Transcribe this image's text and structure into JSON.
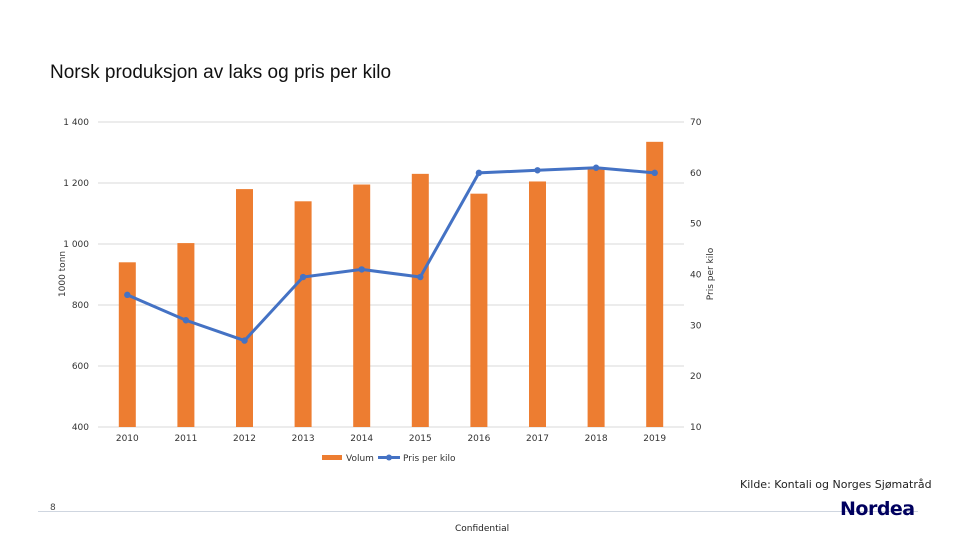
{
  "title": "Norsk produksjon av laks og pris per kilo",
  "chart_data": {
    "type": "bar+line",
    "categories": [
      "2010",
      "2011",
      "2012",
      "2013",
      "2014",
      "2015",
      "2016",
      "2017",
      "2018",
      "2019"
    ],
    "series": [
      {
        "name": "Volum",
        "type": "bar",
        "axis": "left",
        "color": "#ED7D31",
        "values": [
          940,
          1003,
          1180,
          1140,
          1195,
          1230,
          1165,
          1205,
          1250,
          1335
        ]
      },
      {
        "name": "Pris per kilo",
        "type": "line",
        "axis": "right",
        "color": "#4472C4",
        "values": [
          36,
          31,
          27,
          39.5,
          41,
          39.5,
          60,
          60.5,
          61,
          60
        ]
      }
    ],
    "ylabel_left": "1000 tonn",
    "ylabel_right": "Pris per kilo",
    "ylim_left": [
      400,
      1400
    ],
    "yticks_left": [
      "400",
      "600",
      "800",
      "1 000",
      "1 200",
      "1 400"
    ],
    "ylim_right": [
      10,
      70
    ],
    "yticks_right": [
      "10",
      "20",
      "30",
      "40",
      "50",
      "60",
      "70"
    ],
    "grid": true,
    "legend": "bottom"
  },
  "source": "Kilde: Kontali og Norges Sjømatråd",
  "page_number": "8",
  "footer": "Confidential",
  "logo": "Nordea"
}
